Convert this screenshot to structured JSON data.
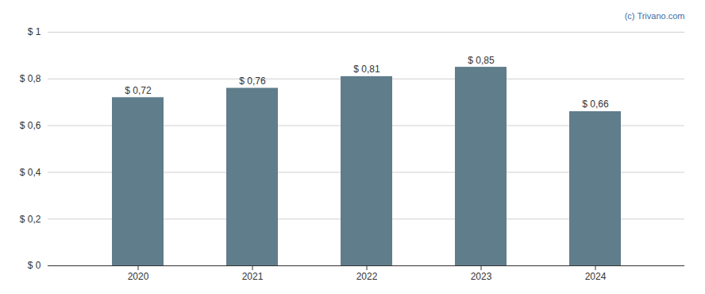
{
  "chart_data": {
    "type": "bar",
    "categories": [
      "2020",
      "2021",
      "2022",
      "2023",
      "2024"
    ],
    "values": [
      0.72,
      0.76,
      0.81,
      0.85,
      0.66
    ],
    "value_labels": [
      "$ 0,72",
      "$ 0,76",
      "$ 0,81",
      "$ 0,85",
      "$ 0,66"
    ],
    "data_labels": true,
    "color": "#607d8b",
    "ylim": [
      0,
      1.0
    ],
    "yticks": [
      {
        "value": 0,
        "label": "$ 0"
      },
      {
        "value": 0.2,
        "label": "$ 0,2"
      },
      {
        "value": 0.4,
        "label": "$ 0,4"
      },
      {
        "value": 0.6,
        "label": "$ 0,6"
      },
      {
        "value": 0.8,
        "label": "$ 0,8"
      },
      {
        "value": 1.0,
        "label": "$ 1"
      }
    ],
    "grid": true,
    "annotations": [
      {
        "text": "(c) Trivano.com",
        "color": "#3a6ea8"
      }
    ]
  }
}
